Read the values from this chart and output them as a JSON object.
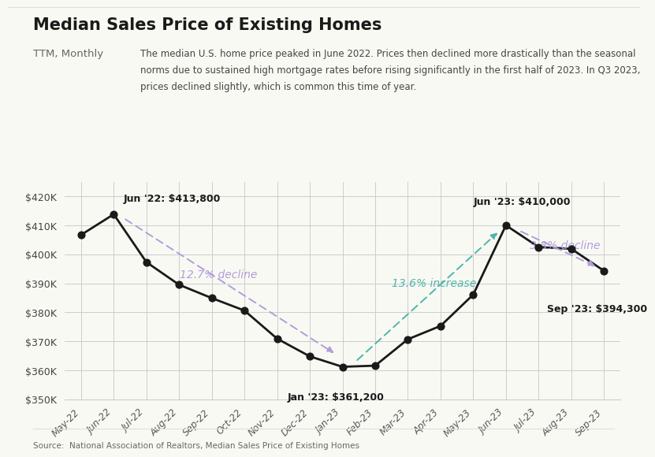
{
  "title": "Median Sales Price of Existing Homes",
  "subtitle": "TTM, Monthly",
  "description": "The median U.S. home price peaked in June 2022. Prices then declined more drastically than the seasonal\nnorms due to sustained high mortgage rates before rising significantly in the first half of 2023. In Q3 2023,\nprices declined slightly, which is common this time of year.",
  "source": "Source:  National Association of Realtors, Median Sales Price of Existing Homes",
  "months": [
    "May-22",
    "Jun-22",
    "Jul-22",
    "Aug-22",
    "Sep-22",
    "Oct-22",
    "Nov-22",
    "Dec-22",
    "Jan-23",
    "Feb-23",
    "Mar-23",
    "Apr-23",
    "May-23",
    "Jun-23",
    "Jul-23",
    "Aug-23",
    "Sep-23"
  ],
  "values": [
    406700,
    413800,
    397300,
    389500,
    384900,
    380600,
    370900,
    364800,
    361200,
    361600,
    370700,
    375300,
    386100,
    410000,
    402500,
    401900,
    394300
  ],
  "ylim": [
    350000,
    425000
  ],
  "yticks": [
    350000,
    360000,
    370000,
    380000,
    390000,
    400000,
    410000,
    420000
  ],
  "ytick_labels": [
    "$350K",
    "$360K",
    "$370K",
    "$380K",
    "$390K",
    "$400K",
    "$410K",
    "$420K"
  ],
  "bg_color": "#f9f9f4",
  "line_color": "#1a1a1a",
  "dot_color": "#1a1a1a",
  "purple_color": "#b39ddb",
  "teal_color": "#4db6ac",
  "annotation_jun22": "Jun '22: $413,800",
  "annotation_jan23": "Jan '23: $361,200",
  "annotation_jun23": "Jun '23: $410,000",
  "annotation_sep23": "Sep '23: $394,300",
  "text_decline_12": "12.7% decline",
  "text_increase_136": "13.6% increase",
  "text_decline_38": "3.8% decline",
  "grid_color": "#cccccc",
  "border_color": "#dddddd"
}
